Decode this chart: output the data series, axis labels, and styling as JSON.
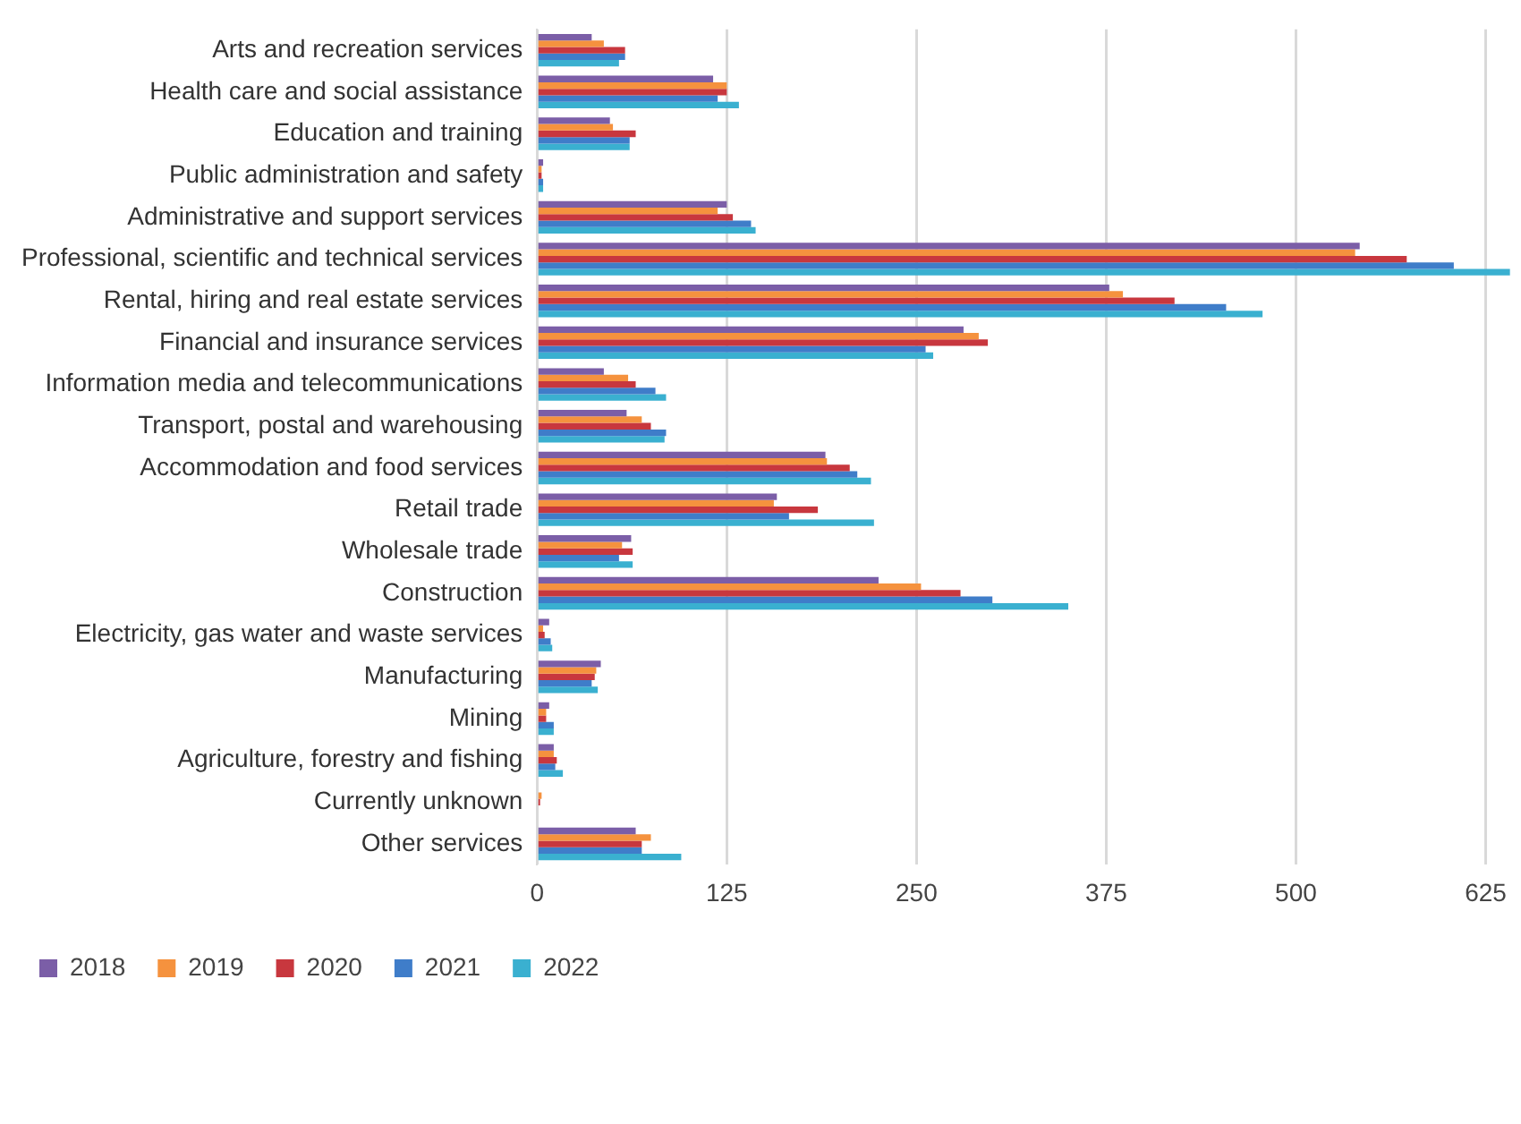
{
  "chart_data": {
    "type": "bar",
    "orientation": "horizontal",
    "categories": [
      "Arts and recreation services",
      "Health care and social assistance",
      "Education and training",
      "Public administration and safety",
      "Administrative and support services",
      "Professional, scientific and technical services",
      "Rental, hiring and real estate services",
      "Financial and insurance services",
      "Information media and telecommunications",
      "Transport, postal and warehousing",
      "Accommodation and food services",
      "Retail trade",
      "Wholesale trade",
      "Construction",
      "Electricity, gas water and waste services",
      "Manufacturing",
      "Mining",
      "Agriculture, forestry and fishing",
      "Currently unknown",
      "Other services"
    ],
    "series": [
      {
        "name": "2018",
        "color": "#7b5ea7",
        "values": [
          36,
          116,
          48,
          4,
          125,
          542,
          377,
          281,
          44,
          59,
          190,
          158,
          62,
          225,
          8,
          42,
          8,
          11,
          null,
          65
        ]
      },
      {
        "name": "2019",
        "color": "#f5923e",
        "values": [
          44,
          125,
          50,
          3,
          119,
          539,
          386,
          291,
          60,
          69,
          191,
          156,
          56,
          253,
          4,
          39,
          6,
          11,
          3,
          75
        ]
      },
      {
        "name": "2020",
        "color": "#c8373e",
        "values": [
          58,
          125,
          65,
          3,
          129,
          573,
          420,
          297,
          65,
          75,
          206,
          185,
          63,
          279,
          5,
          38,
          6,
          13,
          2,
          69
        ]
      },
      {
        "name": "2021",
        "color": "#3f7dc9",
        "values": [
          58,
          119,
          61,
          4,
          141,
          604,
          454,
          256,
          78,
          85,
          211,
          166,
          54,
          300,
          9,
          36,
          11,
          12,
          0,
          69
        ]
      },
      {
        "name": "2022",
        "color": "#3ab0d0",
        "values": [
          54,
          133,
          61,
          4,
          144,
          641,
          478,
          261,
          85,
          84,
          220,
          222,
          63,
          350,
          10,
          40,
          11,
          17,
          0,
          95
        ]
      }
    ],
    "xlim": [
      0,
      645
    ],
    "xticks": [
      0,
      125,
      250,
      375,
      500,
      625
    ],
    "grid": "x",
    "legend": "bottom left"
  }
}
